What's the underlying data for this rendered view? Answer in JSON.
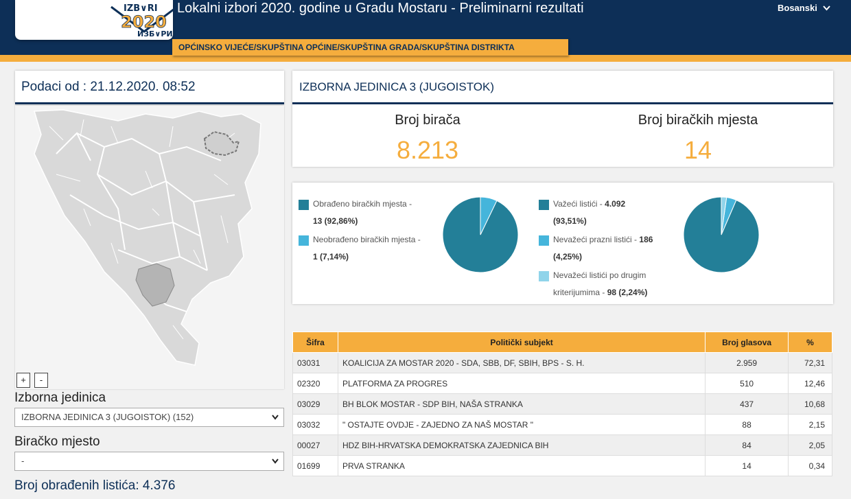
{
  "header": {
    "title": "Lokalni izbori 2020. godine u Gradu Mostaru - Preliminarni rezultati",
    "language": "Bosanski",
    "election_type_tab": "OPĆINSKO VIJEĆE/SKUPŠTINA OPĆINE/SKUPŠTINA GRADA/SKUPŠTINA DISTRIKTA",
    "logo": {
      "top_text": "IZB∨RI",
      "year": "2020",
      "bottom_text": "ИЗБ∨РИ"
    }
  },
  "left": {
    "date_label": "Podaci od : 21.12.2020. 08:52",
    "zoom_in": "+",
    "zoom_out": "-",
    "unit_label": "Izborna jedinica",
    "unit_select": "IZBORNA JEDINICA 3 (JUGOISTOK) (152)",
    "station_label": "Biračko mjesto",
    "station_select": "-",
    "processed": "Broj obrađenih listića: 4.376"
  },
  "unit": {
    "title": "IZBORNA JEDINICA 3 (JUGOISTOK)",
    "voters_label": "Broj birača",
    "voters_value": "8.213",
    "stations_label": "Broj biračkih mjesta",
    "stations_value": "14"
  },
  "pies": {
    "stations": {
      "legend": [
        {
          "label": "Obrađeno biračkih mjesta -",
          "value": "13 (92,86%)",
          "color": "#237f98",
          "pct": 92.86
        },
        {
          "label": "Neobrađeno biračkih mjesta -",
          "value": "1 (7,14%)",
          "color": "#45b5db",
          "pct": 7.14
        }
      ]
    },
    "ballots": {
      "legend": [
        {
          "label": "Važeći listići -",
          "value": "4.092",
          "value2": "(93,51%)",
          "color": "#237f98",
          "pct": 93.51
        },
        {
          "label": "Nevažeći prazni listići -",
          "value": "186",
          "value2": "(4,25%)",
          "color": "#45b5db",
          "pct": 4.25
        },
        {
          "label": "Nevažeći listići po drugim",
          "label2": "kriterijumima -",
          "value": "98 (2,24%)",
          "color": "#90d4ea",
          "pct": 2.24
        }
      ]
    }
  },
  "table": {
    "headers": [
      "Šifra",
      "Politički subjekt",
      "Broj glasova",
      "%"
    ],
    "rows": [
      [
        "03031",
        "KOALICIJA ZA MOSTAR 2020 - SDA, SBB, DF, SBIH, BPS - S. H.",
        "2.959",
        "72,31"
      ],
      [
        "02320",
        "PLATFORMA ZA PROGRES",
        "510",
        "12,46"
      ],
      [
        "03029",
        "BH BLOK MOSTAR - SDP BIH, NAŠA STRANKA",
        "437",
        "10,68"
      ],
      [
        "03032",
        "\" OSTAJTE OVDJE - ZAJEDNO ZA NAŠ MOSTAR \"",
        "88",
        "2,15"
      ],
      [
        "00027",
        "HDZ BIH-HRVATSKA DEMOKRATSKA ZAJEDNICA BIH",
        "84",
        "2,05"
      ],
      [
        "01699",
        "PRVA STRANKA",
        "14",
        "0,34"
      ]
    ]
  }
}
